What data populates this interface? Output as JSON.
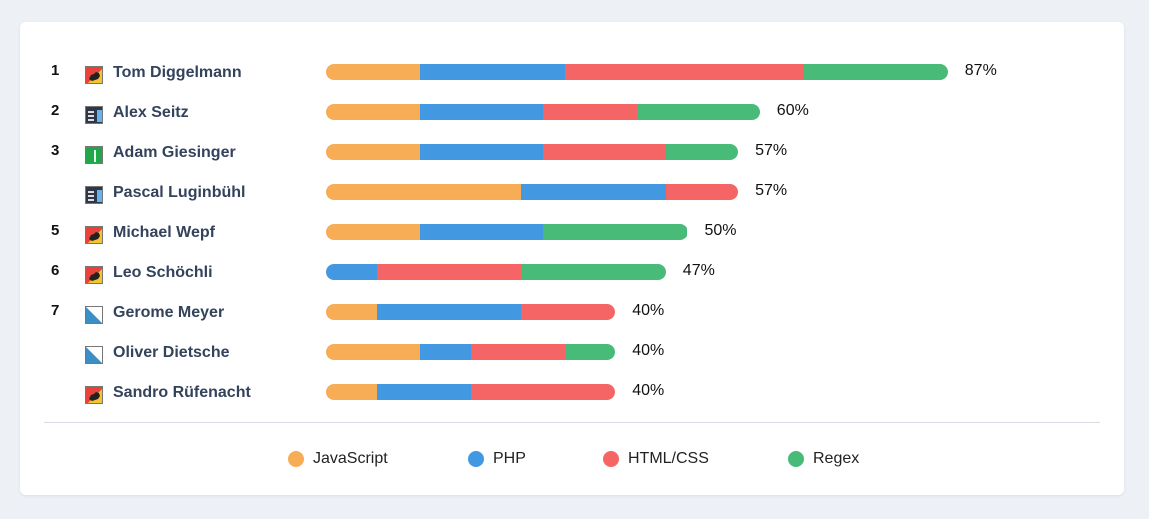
{
  "colors": {
    "JavaScript": "#f6ad55",
    "PHP": "#4299e1",
    "HTML/CSS": "#f56565",
    "Regex": "#48bb78"
  },
  "chart_data": {
    "type": "bar",
    "stacked": true,
    "orientation": "horizontal",
    "unit": "%",
    "series_order": [
      "JavaScript",
      "PHP",
      "HTML/CSS",
      "Regex"
    ],
    "legend": {
      "placement": "bottom",
      "entries": [
        "JavaScript",
        "PHP",
        "HTML/CSS",
        "Regex"
      ]
    },
    "rows": [
      {
        "rank": "1",
        "name": "Tom Diggelmann",
        "flag": "bern",
        "total": "87%",
        "values": {
          "JavaScript": 13,
          "PHP": 20,
          "HTML/CSS": 33,
          "Regex": 20
        }
      },
      {
        "rank": "2",
        "name": "Alex Seitz",
        "flag": "dark",
        "total": "60%",
        "values": {
          "JavaScript": 13,
          "PHP": 17,
          "HTML/CSS": 13,
          "Regex": 17
        }
      },
      {
        "rank": "3",
        "name": "Adam Giesinger",
        "flag": "green",
        "total": "57%",
        "values": {
          "JavaScript": 13,
          "PHP": 17,
          "HTML/CSS": 17,
          "Regex": 10
        }
      },
      {
        "rank": "",
        "name": "Pascal Luginbühl",
        "flag": "dark",
        "total": "57%",
        "values": {
          "JavaScript": 27,
          "PHP": 20,
          "HTML/CSS": 10,
          "Regex": 0
        }
      },
      {
        "rank": "5",
        "name": "Michael Wepf",
        "flag": "bern",
        "total": "50%",
        "values": {
          "JavaScript": 13,
          "PHP": 17,
          "HTML/CSS": 0,
          "Regex": 20
        }
      },
      {
        "rank": "6",
        "name": "Leo Schöchli",
        "flag": "bern",
        "total": "47%",
        "values": {
          "JavaScript": 0,
          "PHP": 7,
          "HTML/CSS": 20,
          "Regex": 20
        }
      },
      {
        "rank": "7",
        "name": "Gerome Meyer",
        "flag": "diag",
        "total": "40%",
        "values": {
          "JavaScript": 7,
          "PHP": 20,
          "HTML/CSS": 13,
          "Regex": 0
        }
      },
      {
        "rank": "",
        "name": "Oliver Dietsche",
        "flag": "diag",
        "total": "40%",
        "values": {
          "JavaScript": 13,
          "PHP": 7,
          "HTML/CSS": 13,
          "Regex": 7
        }
      },
      {
        "rank": "",
        "name": "Sandro Rüfenacht",
        "flag": "bern",
        "total": "40%",
        "values": {
          "JavaScript": 7,
          "PHP": 13,
          "HTML/CSS": 20,
          "Regex": 0
        }
      }
    ]
  }
}
